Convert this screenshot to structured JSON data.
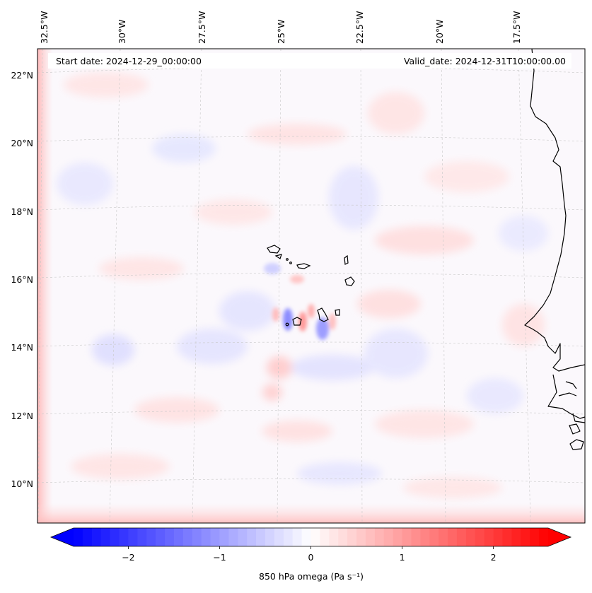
{
  "map": {
    "start_label": "Start date: 2024-12-29_00:00:00",
    "valid_label": "Valid_date: 2024-12-31T10:00:00.00",
    "lon_ticks": [
      "32.5°W",
      "30°W",
      "27.5°W",
      "25°W",
      "22.5°W",
      "20°W",
      "17.5°W"
    ],
    "lat_ticks": [
      "22°N",
      "20°N",
      "18°N",
      "16°N",
      "14°N",
      "12°N",
      "10°N"
    ],
    "field": "850 hPa omega",
    "colormap": "bwr",
    "gridlines": true
  },
  "colorbar": {
    "label": "850 hPa omega (Pa s⁻¹)",
    "ticks": [
      "−2",
      "−1",
      "0",
      "1",
      "2"
    ],
    "tick_values": [
      -2,
      -1,
      0,
      1,
      2
    ],
    "range": [
      -2.6,
      2.6
    ],
    "extend": "both",
    "colors": {
      "min": "#0000ff",
      "mid": "#ffffff",
      "max": "#ff0000"
    }
  }
}
